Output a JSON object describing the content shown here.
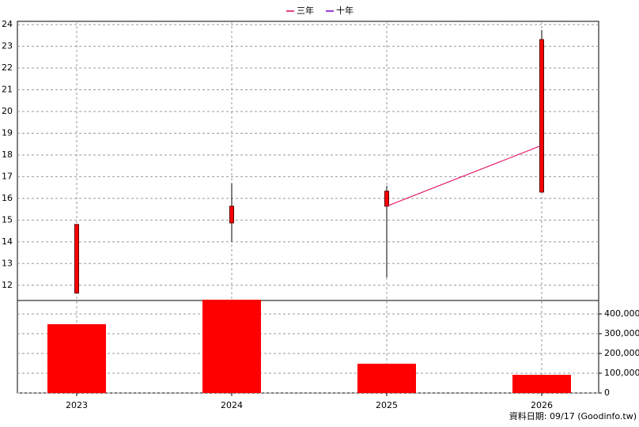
{
  "chart_data": {
    "type": "candlestick",
    "categories": [
      "2023",
      "2024",
      "2025",
      "2026"
    ],
    "open": [
      11.64,
      14.87,
      15.64,
      16.29
    ],
    "high": [
      14.8,
      16.69,
      16.58,
      23.75
    ],
    "low": [
      11.64,
      14.0,
      12.36,
      16.29
    ],
    "close": [
      14.8,
      15.64,
      16.33,
      23.31
    ],
    "candle_color": "#ff0000",
    "series": [
      {
        "name": "三年",
        "color": "#e0005a",
        "values": [
          null,
          null,
          15.64,
          18.44
        ]
      },
      {
        "name": "十年",
        "color": "#8000c0",
        "values": [
          null,
          null,
          null,
          null
        ]
      }
    ],
    "ylim": [
      11.3,
      24.15
    ],
    "yticks": [
      12,
      13,
      14,
      15,
      16,
      17,
      18,
      19,
      20,
      21,
      22,
      23,
      24
    ],
    "grid": true,
    "legend": "top",
    "volume": {
      "type": "bar",
      "color": "#ff0000",
      "values": [
        348000,
        472000,
        148000,
        92000
      ],
      "ylim": [
        0,
        480000
      ],
      "yticks": [
        0,
        {
          "value": 100000,
          "label": "100,000"
        },
        {
          "value": 200000,
          "label": "200,000"
        },
        {
          "value": 300000,
          "label": "300,000"
        },
        {
          "value": 400000,
          "label": "400,000"
        }
      ]
    },
    "source_note": "資料日期: 09/17  (Goodinfo.tw)"
  }
}
